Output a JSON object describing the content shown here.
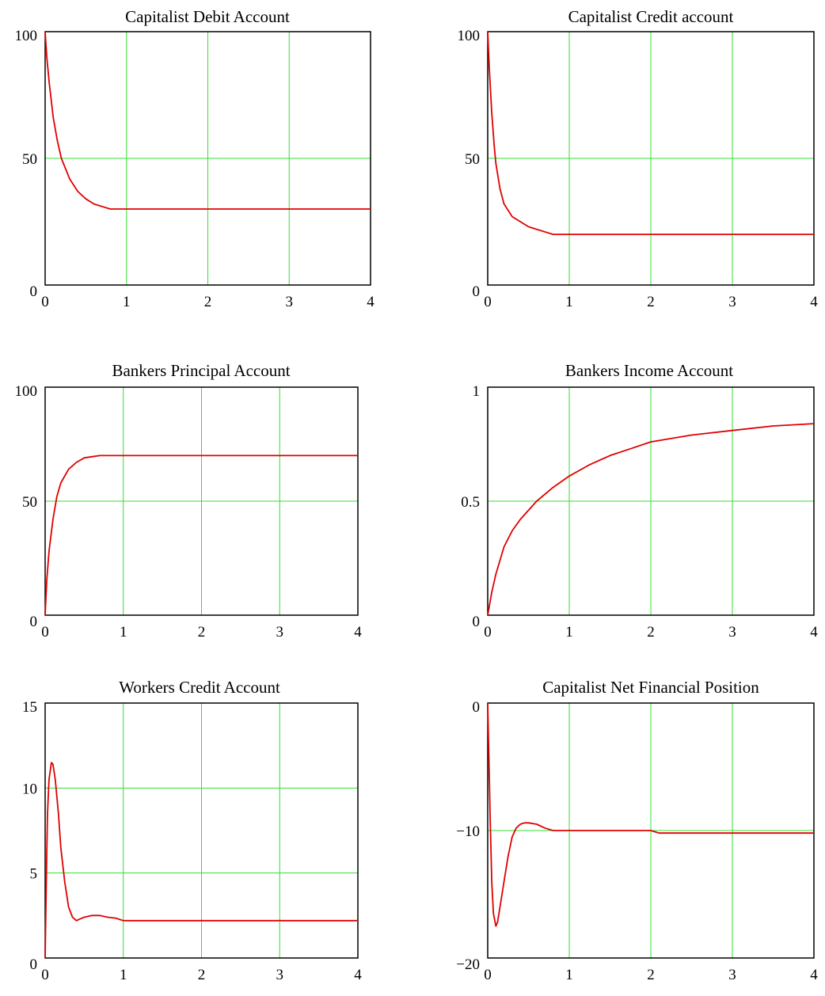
{
  "chart_data": [
    {
      "type": "line",
      "title": "Capitalist Debit Account",
      "xlim": [
        0,
        4
      ],
      "ylim": [
        0,
        100
      ],
      "xticks": [
        "0",
        "1",
        "2",
        "3",
        "4"
      ],
      "yticks": [
        "0",
        "50",
        "100"
      ],
      "grid": true,
      "series_color": "#e00000",
      "grid_color": "#33e033",
      "x": [
        0,
        0.02,
        0.05,
        0.1,
        0.15,
        0.2,
        0.3,
        0.4,
        0.5,
        0.6,
        0.7,
        0.8,
        1.0,
        2.0,
        3.0,
        4.0
      ],
      "y": [
        100,
        90,
        80,
        66,
        57,
        50,
        42,
        37,
        34,
        32,
        31,
        30,
        30,
        30,
        30,
        30
      ]
    },
    {
      "type": "line",
      "title": "Capitalist Credit account",
      "xlim": [
        0,
        4
      ],
      "ylim": [
        0,
        100
      ],
      "xticks": [
        "0",
        "1",
        "2",
        "3",
        "4"
      ],
      "yticks": [
        "0",
        "50",
        "100"
      ],
      "grid": true,
      "series_color": "#e00000",
      "grid_color": "#33e033",
      "x": [
        0,
        0.02,
        0.05,
        0.08,
        0.1,
        0.15,
        0.2,
        0.3,
        0.4,
        0.5,
        0.6,
        0.7,
        0.8,
        1.0,
        2.0,
        3.0,
        4.0
      ],
      "y": [
        100,
        85,
        68,
        55,
        48,
        38,
        32,
        27,
        25,
        23,
        22,
        21,
        20,
        20,
        20,
        20,
        20
      ]
    },
    {
      "type": "line",
      "title": "Bankers Principal Account",
      "xlim": [
        0,
        4
      ],
      "ylim": [
        0,
        100
      ],
      "xticks": [
        "0",
        "1",
        "2",
        "3",
        "4"
      ],
      "yticks": [
        "0",
        "50",
        "100"
      ],
      "grid": true,
      "series_color": "#e00000",
      "grid_color": "#33e033",
      "x": [
        0,
        0.02,
        0.05,
        0.1,
        0.15,
        0.2,
        0.3,
        0.4,
        0.5,
        0.6,
        0.7,
        0.8,
        1.0,
        2.0,
        3.0,
        4.0
      ],
      "y": [
        0,
        15,
        28,
        42,
        52,
        58,
        64,
        67,
        69,
        69.5,
        70,
        70,
        70,
        70,
        70,
        70
      ]
    },
    {
      "type": "line",
      "title": "Bankers Income Account",
      "xlim": [
        0,
        4
      ],
      "ylim": [
        0,
        1
      ],
      "xticks": [
        "0",
        "1",
        "2",
        "3",
        "4"
      ],
      "yticks": [
        "0",
        "0.5",
        "1"
      ],
      "grid": true,
      "series_color": "#e00000",
      "grid_color": "#33e033",
      "x": [
        0,
        0.05,
        0.1,
        0.2,
        0.3,
        0.4,
        0.5,
        0.6,
        0.8,
        1.0,
        1.25,
        1.5,
        1.75,
        2.0,
        2.5,
        3.0,
        3.5,
        4.0
      ],
      "y": [
        0,
        0.1,
        0.18,
        0.3,
        0.37,
        0.42,
        0.46,
        0.5,
        0.56,
        0.61,
        0.66,
        0.7,
        0.73,
        0.76,
        0.79,
        0.81,
        0.83,
        0.84
      ]
    },
    {
      "type": "line",
      "title": "Workers Credit Account",
      "xlim": [
        0,
        4
      ],
      "ylim": [
        0,
        15
      ],
      "xticks": [
        "0",
        "1",
        "2",
        "3",
        "4"
      ],
      "yticks": [
        "0",
        "5",
        "10",
        "15"
      ],
      "grid": true,
      "series_color": "#e00000",
      "grid_color": "#33e033",
      "x": [
        0,
        0.01,
        0.02,
        0.03,
        0.05,
        0.08,
        0.1,
        0.13,
        0.17,
        0.2,
        0.25,
        0.3,
        0.35,
        0.4,
        0.45,
        0.5,
        0.6,
        0.7,
        0.8,
        0.9,
        1.0,
        2.0,
        3.0,
        4.0
      ],
      "y": [
        0,
        3,
        6,
        8.5,
        10.5,
        11.5,
        11.4,
        10.5,
        8.5,
        6.5,
        4.5,
        3.0,
        2.4,
        2.2,
        2.3,
        2.4,
        2.5,
        2.5,
        2.4,
        2.35,
        2.2,
        2.2,
        2.2,
        2.2
      ]
    },
    {
      "type": "line",
      "title": "Capitalist Net Financial Position",
      "xlim": [
        0,
        4
      ],
      "ylim": [
        -20,
        0
      ],
      "xticks": [
        "0",
        "1",
        "2",
        "3",
        "4"
      ],
      "yticks": [
        "−20",
        "−10",
        "0"
      ],
      "grid": true,
      "series_color": "#e00000",
      "grid_color": "#33e033",
      "x": [
        0,
        0.01,
        0.02,
        0.03,
        0.05,
        0.07,
        0.1,
        0.12,
        0.15,
        0.2,
        0.25,
        0.3,
        0.35,
        0.4,
        0.45,
        0.5,
        0.6,
        0.7,
        0.8,
        1.0,
        2.0,
        2.1,
        3.0,
        4.0
      ],
      "y": [
        0,
        -3,
        -6,
        -9,
        -14,
        -16.5,
        -17.5,
        -17.2,
        -16,
        -14,
        -12,
        -10.5,
        -9.8,
        -9.5,
        -9.4,
        -9.4,
        -9.5,
        -9.8,
        -10,
        -10,
        -10,
        -10.2,
        -10.2,
        -10.2
      ]
    }
  ]
}
